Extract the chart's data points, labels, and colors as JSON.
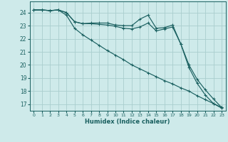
{
  "xlabel": "Humidex (Indice chaleur)",
  "xlim": [
    -0.5,
    23.5
  ],
  "ylim": [
    16.5,
    24.85
  ],
  "yticks": [
    17,
    18,
    19,
    20,
    21,
    22,
    23,
    24
  ],
  "xticks": [
    0,
    1,
    2,
    3,
    4,
    5,
    6,
    7,
    8,
    9,
    10,
    11,
    12,
    13,
    14,
    15,
    16,
    17,
    18,
    19,
    20,
    21,
    22,
    23
  ],
  "bg_color": "#ceeaea",
  "grid_color": "#aacece",
  "line_color": "#1a6060",
  "series": [
    [
      24.2,
      24.2,
      24.15,
      24.2,
      24.0,
      23.3,
      23.15,
      23.2,
      23.2,
      23.2,
      23.05,
      23.0,
      23.0,
      23.5,
      23.8,
      22.8,
      22.85,
      23.05,
      21.6,
      19.8,
      18.6,
      17.7,
      17.05,
      16.75
    ],
    [
      24.2,
      24.2,
      24.15,
      24.2,
      24.0,
      23.3,
      23.15,
      23.15,
      23.1,
      23.05,
      22.95,
      22.8,
      22.75,
      22.9,
      23.2,
      22.6,
      22.75,
      22.9,
      21.6,
      20.0,
      18.9,
      18.1,
      17.4,
      16.75
    ],
    [
      24.2,
      24.2,
      24.15,
      24.2,
      23.8,
      22.8,
      22.3,
      21.9,
      21.5,
      21.1,
      20.75,
      20.4,
      20.0,
      19.7,
      19.4,
      19.1,
      18.8,
      18.55,
      18.25,
      18.0,
      17.65,
      17.35,
      17.05,
      16.7
    ]
  ]
}
